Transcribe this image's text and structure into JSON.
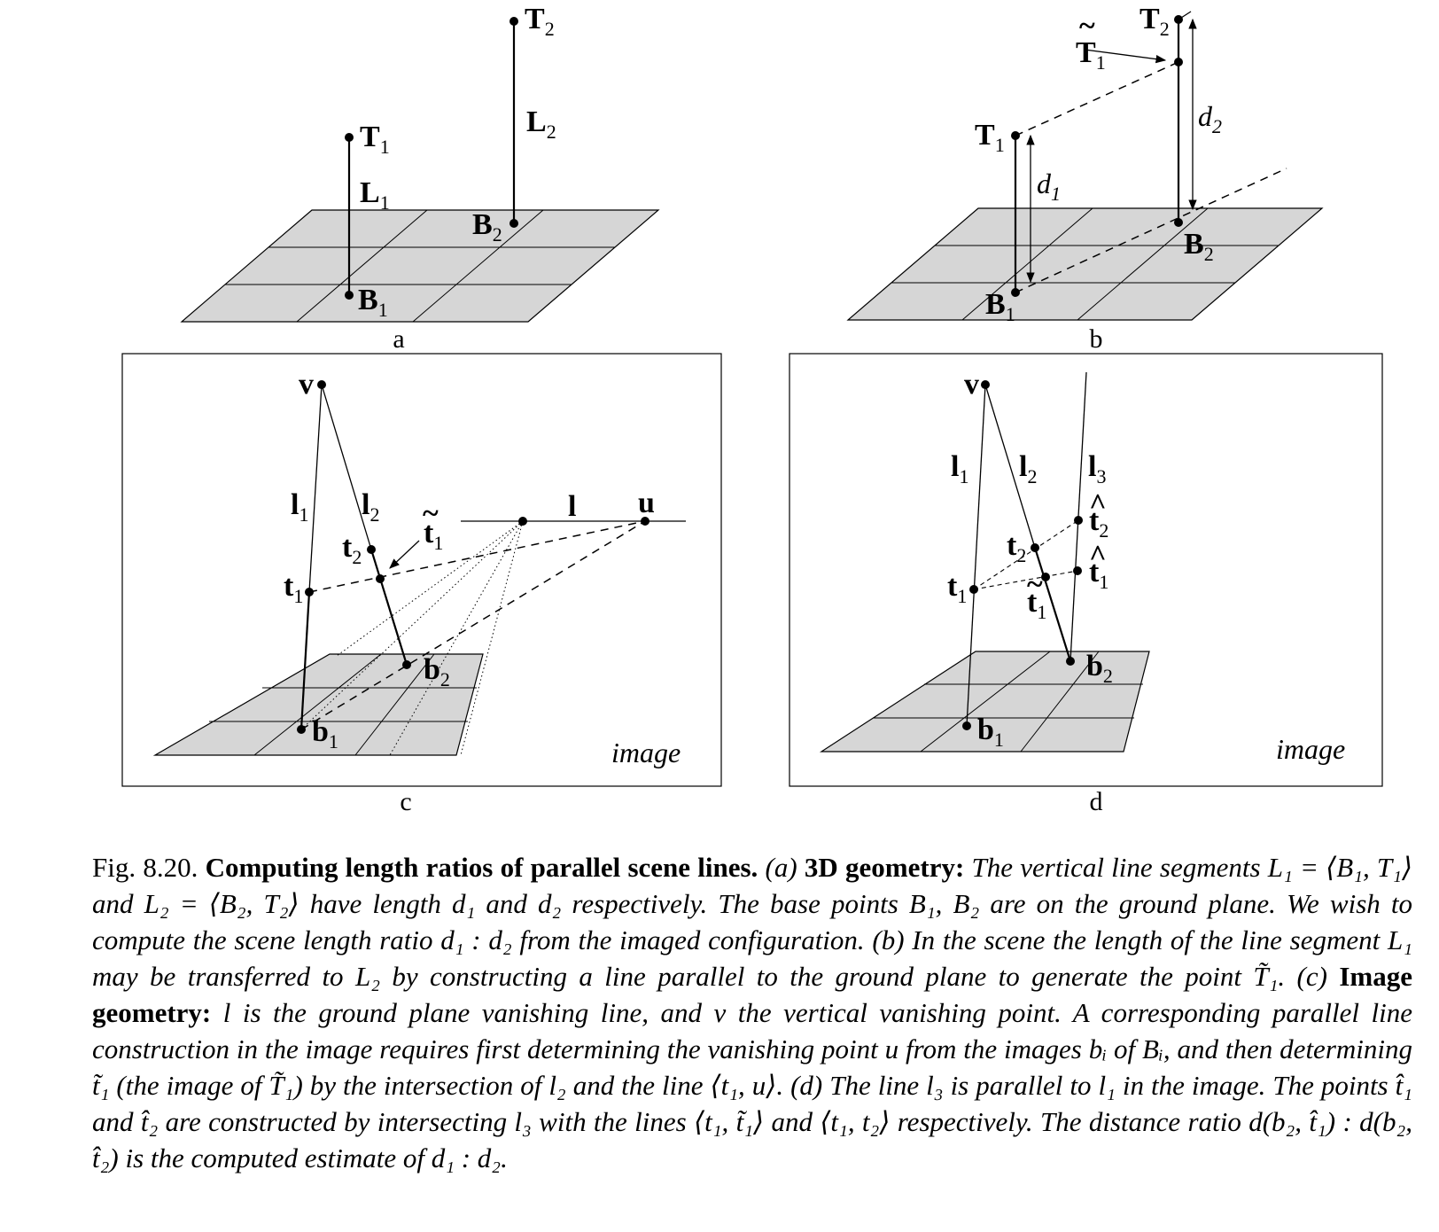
{
  "labels": {
    "a": "a",
    "b": "b",
    "c": "c",
    "d": "d",
    "image": "image",
    "T": "T",
    "B": "B",
    "L": "L",
    "d_var": "d",
    "v": "v",
    "l": "l",
    "u": "u",
    "t": "t",
    "b_low": "b",
    "one": "1",
    "two": "2",
    "three": "3",
    "tilde": "~",
    "hat": "^"
  },
  "caption": {
    "fig_number": "Fig. 8.20.",
    "title": "Computing length ratios of parallel scene lines.",
    "p_a": "(a)",
    "h_3d": "3D geometry:",
    "s1": "The vertical line segments L₁ = ⟨B₁, T₁⟩ and L₂ = ⟨B₂, T₂⟩ have length d₁ and d₂ respectively. The base points B₁, B₂ are on the ground plane. We wish to compute the scene length ratio d₁ : d₂ from the imaged configuration. (b) In the scene the length of the line segment L₁ may be transferred to L₂ by constructing a line parallel to the ground plane to generate the point T̃₁.",
    "p_c": "(c)",
    "h_img": "Image geometry:",
    "s2": "l is the ground plane vanishing line, and v the vertical vanishing point. A corresponding parallel line construction in the image requires first determining the vanishing point u from the images bᵢ of Bᵢ, and then determining t̃₁ (the image of T̃₁) by the intersection of l₂ and the line ⟨t₁, u⟩. (d) The line l₃ is parallel to l₁ in the image. The points t̂₁ and t̂₂ are constructed by intersecting l₃ with the lines ⟨t₁, t̃₁⟩ and ⟨t₁, t₂⟩ respectively. The distance ratio d(b₂, t̂₁) : d(b₂, t̂₂) is the computed estimate of d₁ : d₂."
  }
}
